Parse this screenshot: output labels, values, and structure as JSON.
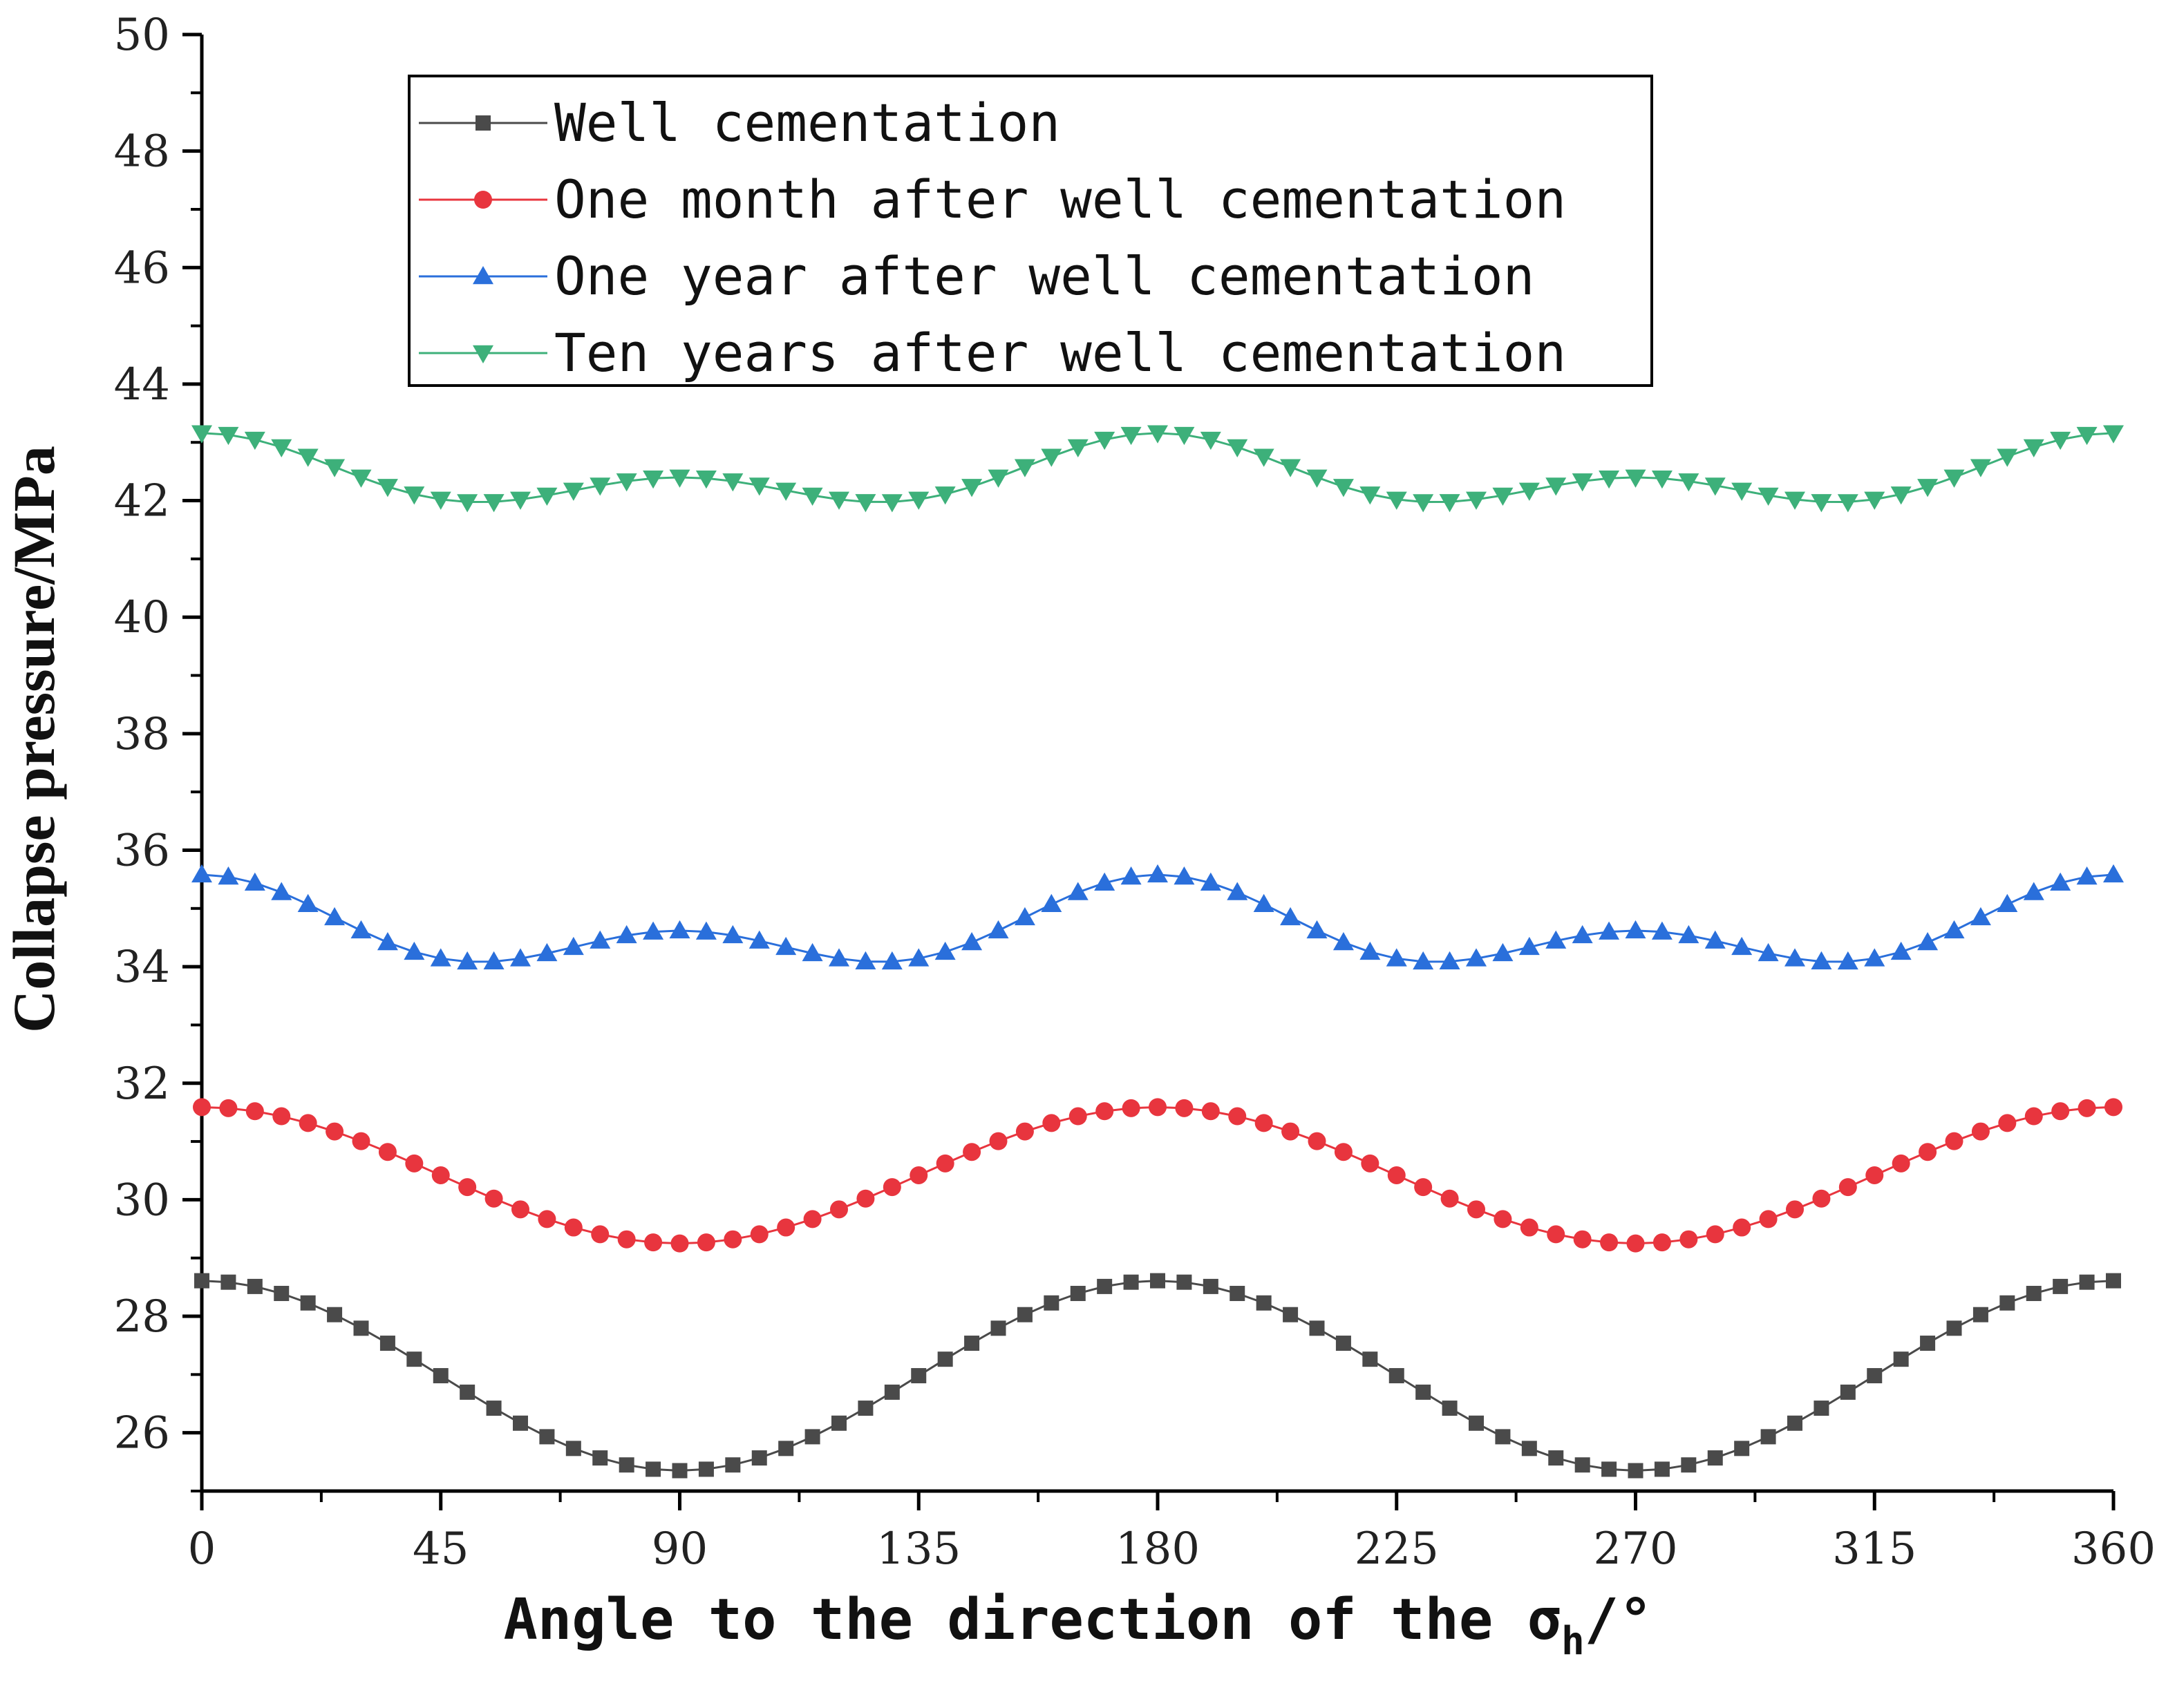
{
  "chart_data": {
    "type": "line",
    "xlabel": "Angle to the direction of the σ",
    "xlabel_subscript": "h",
    "xlabel_suffix": "/°",
    "ylabel": "Collapse pressure/MPa",
    "xlim": [
      0,
      360
    ],
    "ylim": [
      25,
      50
    ],
    "xticks": [
      0,
      45,
      90,
      135,
      180,
      225,
      270,
      315,
      360
    ],
    "yticks": [
      26,
      28,
      30,
      32,
      34,
      36,
      38,
      40,
      42,
      44,
      46,
      48,
      50
    ],
    "grid": false,
    "legend_position": "top-left",
    "series": [
      {
        "name": "Well cementation",
        "color": "#4a4a4a",
        "marker": "square",
        "base": 26.98,
        "a2": 1.63,
        "a4": 0,
        "step": 5
      },
      {
        "name": "One month after well cementation",
        "color": "#e8353e",
        "marker": "circle",
        "base": 30.42,
        "a2": 1.17,
        "a4": 0,
        "step": 5
      },
      {
        "name": "One year after well cementation",
        "color": "#2a6fdb",
        "marker": "triangle-up",
        "base": 34.62,
        "a2": 0.48,
        "a4": 0.48,
        "step": 5
      },
      {
        "name": "Ten years after well cementation",
        "color": "#3db07a",
        "marker": "triangle-down",
        "base": 42.4,
        "a2": 0.38,
        "a4": 0.38,
        "step": 5
      }
    ]
  }
}
